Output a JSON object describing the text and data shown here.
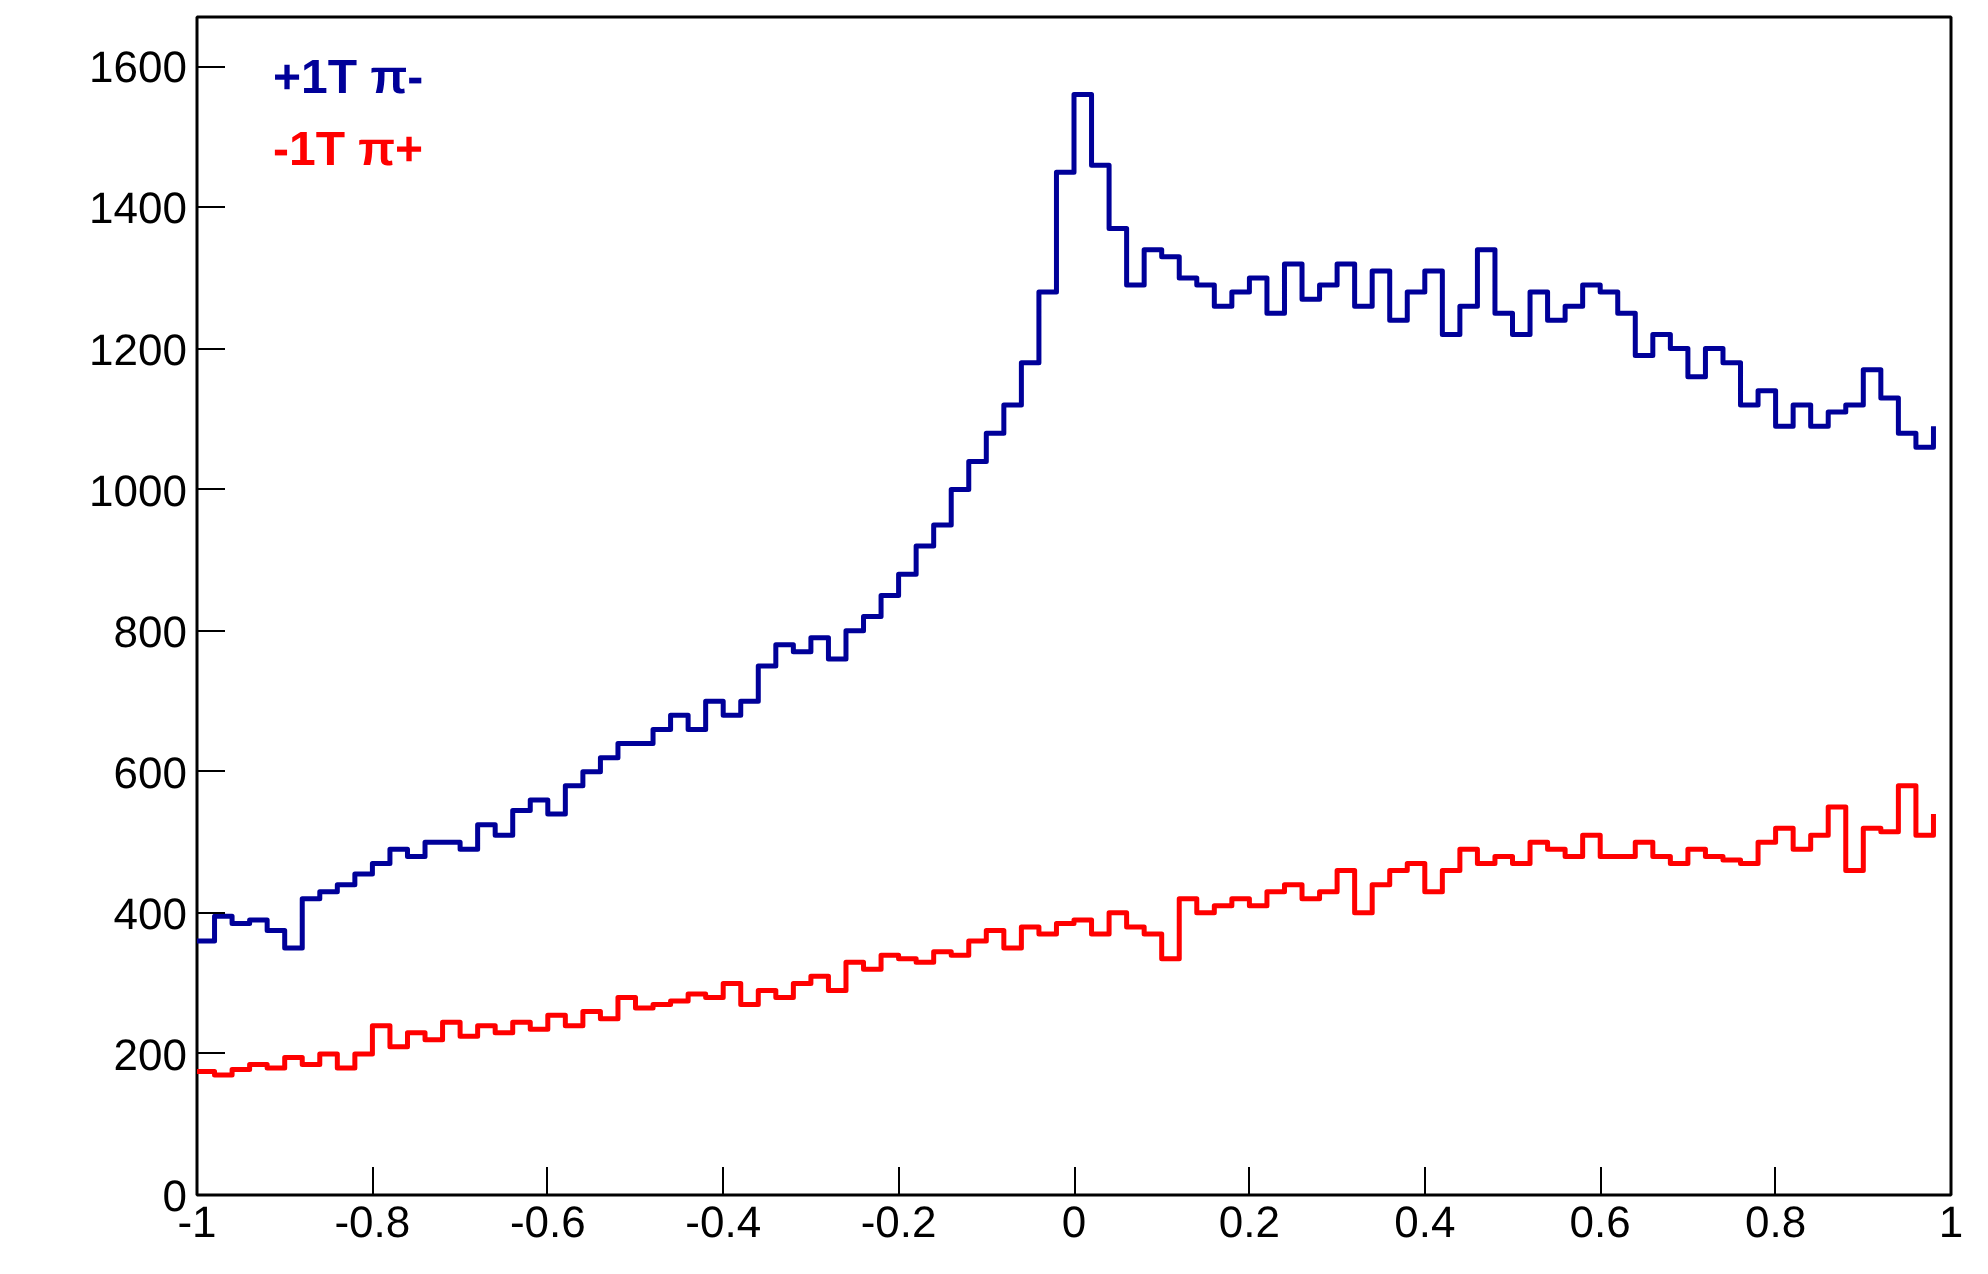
{
  "chart_data": {
    "type": "step",
    "xlim": [
      -1,
      1
    ],
    "ylim": [
      0,
      1670
    ],
    "xticks": [
      -1,
      -0.8,
      -0.6,
      -0.4,
      -0.2,
      0,
      0.2,
      0.4,
      0.6,
      0.8,
      1
    ],
    "yticks": [
      0,
      200,
      400,
      600,
      800,
      1000,
      1200,
      1400,
      1600
    ],
    "grid": false,
    "legend": "top left",
    "x": [
      -1.0,
      -0.98,
      -0.96,
      -0.94,
      -0.92,
      -0.9,
      -0.88,
      -0.86,
      -0.84,
      -0.82,
      -0.8,
      -0.78,
      -0.76,
      -0.74,
      -0.72,
      -0.7,
      -0.68,
      -0.66,
      -0.64,
      -0.62,
      -0.6,
      -0.58,
      -0.56,
      -0.54,
      -0.52,
      -0.5,
      -0.48,
      -0.46,
      -0.44,
      -0.42,
      -0.4,
      -0.38,
      -0.36,
      -0.34,
      -0.32,
      -0.3,
      -0.28,
      -0.26,
      -0.24,
      -0.22,
      -0.2,
      -0.18,
      -0.16,
      -0.14,
      -0.12,
      -0.1,
      -0.08,
      -0.06,
      -0.04,
      -0.02,
      0.0,
      0.02,
      0.04,
      0.06,
      0.08,
      0.1,
      0.12,
      0.14,
      0.16,
      0.18,
      0.2,
      0.22,
      0.24,
      0.26,
      0.28,
      0.3,
      0.32,
      0.34,
      0.36,
      0.38,
      0.4,
      0.42,
      0.44,
      0.46,
      0.48,
      0.5,
      0.52,
      0.54,
      0.56,
      0.58,
      0.6,
      0.62,
      0.64,
      0.66,
      0.68,
      0.7,
      0.72,
      0.74,
      0.76,
      0.78,
      0.8,
      0.82,
      0.84,
      0.86,
      0.88,
      0.9,
      0.92,
      0.94,
      0.96,
      0.98
    ],
    "series": [
      {
        "name": "+1T  π-",
        "color": "#000099",
        "values": [
          360,
          395,
          385,
          390,
          375,
          350,
          420,
          430,
          440,
          455,
          470,
          490,
          480,
          500,
          500,
          490,
          525,
          510,
          545,
          560,
          540,
          580,
          600,
          620,
          640,
          640,
          660,
          680,
          660,
          700,
          680,
          700,
          750,
          780,
          770,
          790,
          760,
          800,
          820,
          850,
          880,
          920,
          950,
          1000,
          1040,
          1080,
          1120,
          1180,
          1280,
          1450,
          1560,
          1460,
          1370,
          1290,
          1340,
          1330,
          1300,
          1290,
          1260,
          1280,
          1300,
          1250,
          1320,
          1270,
          1290,
          1320,
          1260,
          1310,
          1240,
          1280,
          1310,
          1220,
          1260,
          1340,
          1250,
          1220,
          1280,
          1240,
          1260,
          1290,
          1280,
          1250,
          1190,
          1220,
          1200,
          1160,
          1200,
          1180,
          1120,
          1140,
          1090,
          1120,
          1090,
          1110,
          1120,
          1170,
          1130,
          1080,
          1060,
          1090
        ]
      },
      {
        "name": "-1T  π+",
        "color": "#ff0000",
        "values": [
          175,
          170,
          178,
          185,
          180,
          195,
          185,
          200,
          180,
          200,
          240,
          210,
          230,
          220,
          245,
          225,
          240,
          230,
          245,
          235,
          255,
          240,
          260,
          250,
          280,
          265,
          270,
          275,
          285,
          280,
          300,
          270,
          290,
          280,
          300,
          310,
          290,
          330,
          320,
          340,
          335,
          330,
          345,
          340,
          360,
          375,
          350,
          380,
          370,
          385,
          390,
          370,
          400,
          380,
          370,
          335,
          420,
          400,
          410,
          420,
          410,
          430,
          440,
          420,
          430,
          460,
          400,
          440,
          460,
          470,
          430,
          460,
          490,
          470,
          480,
          470,
          500,
          490,
          480,
          510,
          480,
          480,
          500,
          480,
          470,
          490,
          480,
          475,
          470,
          500,
          520,
          490,
          510,
          550,
          460,
          520,
          515,
          580,
          510,
          540
        ]
      }
    ]
  }
}
